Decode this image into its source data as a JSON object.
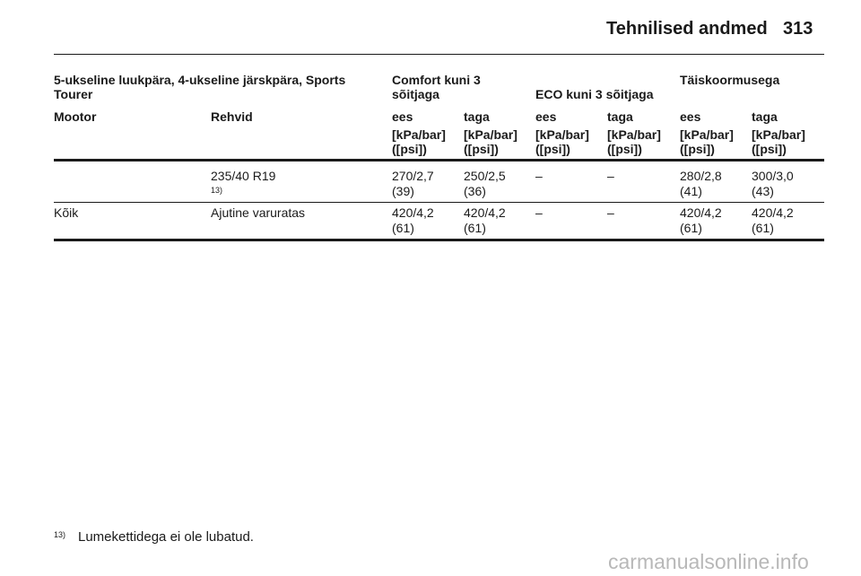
{
  "header": {
    "title": "Tehnilised andmed",
    "page_number": "313"
  },
  "table": {
    "group_header": {
      "vehicles": "5-ukseline luukpära, 4-ukseline järskpära, Sports Tourer",
      "comfort": "Comfort kuni 3 sõitjaga",
      "eco": "ECO kuni 3 sõitjaga",
      "full_load": "Täiskoormusega"
    },
    "columns": [
      "Mootor",
      "Rehvid",
      "ees",
      "taga",
      "ees",
      "taga",
      "ees",
      "taga"
    ],
    "units": [
      {
        "line1": "[kPa/bar]",
        "line2": "([psi])"
      },
      {
        "line1": "[kPa/bar]",
        "line2": "([psi])"
      },
      {
        "line1": "[kPa/bar]",
        "line2": "([psi])"
      },
      {
        "line1": "[kPa/bar]",
        "line2": "([psi])"
      },
      {
        "line1": "[kPa/bar]",
        "line2": "([psi])"
      },
      {
        "line1": "[kPa/bar]",
        "line2": "([psi])"
      }
    ],
    "rows": [
      {
        "tire": "235/40 R19",
        "tire_note": "13)",
        "cells": [
          {
            "line1": "270/2,7",
            "line2": "(39)"
          },
          {
            "line1": "250/2,5",
            "line2": "(36)"
          },
          {
            "line1": "–"
          },
          {
            "line1": "–"
          },
          {
            "line1": "280/2,8",
            "line2": "(41)"
          },
          {
            "line1": "300/3,0",
            "line2": "(43)"
          }
        ]
      },
      {
        "engine": "Kõik",
        "tire": "Ajutine varuratas",
        "cells": [
          {
            "line1": "420/4,2",
            "line2": "(61)"
          },
          {
            "line1": "420/4,2",
            "line2": "(61)"
          },
          {
            "line1": "–"
          },
          {
            "line1": "–"
          },
          {
            "line1": "420/4,2",
            "line2": "(61)"
          },
          {
            "line1": "420/4,2",
            "line2": "(61)"
          }
        ]
      }
    ]
  },
  "footnote": {
    "marker": "13)",
    "text": "Lumekettidega ei ole lubatud."
  },
  "watermark": "carmanualsonline.info"
}
